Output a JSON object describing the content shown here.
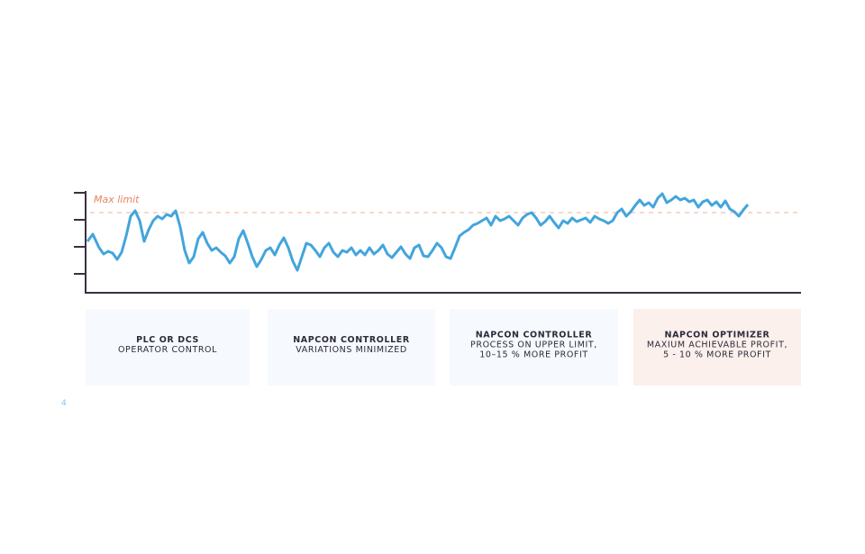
{
  "diagram": {
    "max_limit_label": "Max limit",
    "cards": [
      {
        "title": "PLC OR DCS",
        "lines": [
          "OPERATOR CONTROL"
        ]
      },
      {
        "title": "NAPCON CONTROLLER",
        "lines": [
          "VARIATIONS MINIMIZED"
        ]
      },
      {
        "title": "NAPCON CONTROLLER",
        "lines": [
          "PROCESS ON UPPER LIMIT,",
          "10–15 % MORE PROFIT"
        ]
      },
      {
        "title": "NAPCON OPTIMIZER",
        "lines": [
          "MAXIUM ACHIEVABLE PROFIT,",
          "5 - 10 % MORE PROFIT"
        ]
      }
    ],
    "page_number": "4"
  }
}
